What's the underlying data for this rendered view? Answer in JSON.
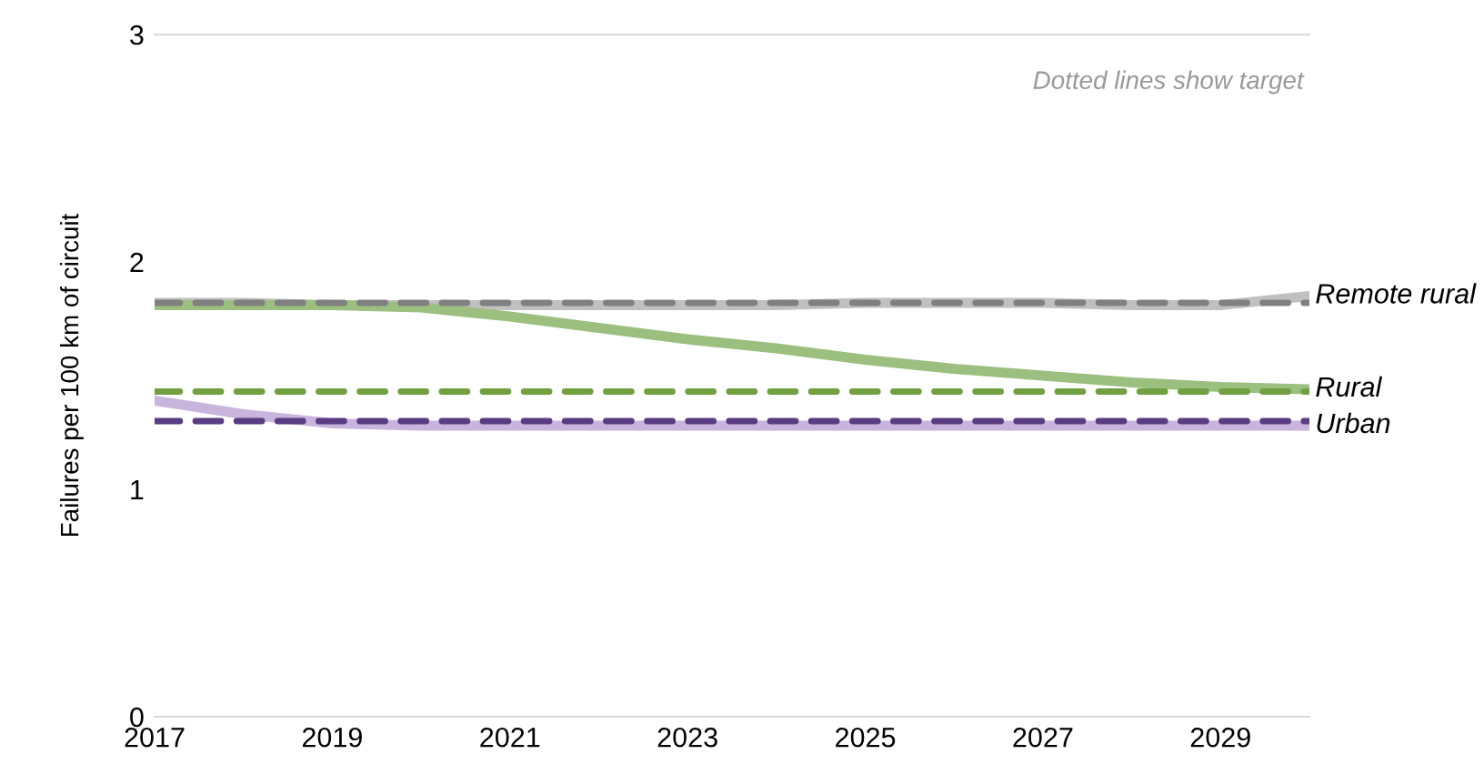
{
  "chart_data": {
    "type": "line",
    "ylabel": "Failures per 100 km of circuit",
    "x": [
      2017,
      2018,
      2019,
      2020,
      2021,
      2022,
      2023,
      2024,
      2025,
      2026,
      2027,
      2028,
      2029,
      2030
    ],
    "xlim": [
      2017,
      2030
    ],
    "xticks": [
      2017,
      2019,
      2021,
      2023,
      2025,
      2027,
      2029
    ],
    "ylim": [
      0,
      3
    ],
    "yticks": [
      0,
      1,
      2,
      3
    ],
    "grid": false,
    "legend": false,
    "series": [
      {
        "name": "Remote rural",
        "color": "#c0c0c0",
        "values": [
          1.82,
          1.82,
          1.81,
          1.81,
          1.81,
          1.81,
          1.81,
          1.81,
          1.82,
          1.82,
          1.82,
          1.81,
          1.81,
          1.85
        ]
      },
      {
        "name": "Rural",
        "color": "#9bbf7f",
        "values": [
          1.81,
          1.81,
          1.81,
          1.8,
          1.76,
          1.71,
          1.66,
          1.62,
          1.57,
          1.53,
          1.5,
          1.47,
          1.45,
          1.44
        ]
      },
      {
        "name": "Urban",
        "color": "#c8b4dc",
        "values": [
          1.39,
          1.33,
          1.29,
          1.28,
          1.28,
          1.28,
          1.28,
          1.28,
          1.28,
          1.28,
          1.28,
          1.28,
          1.28,
          1.28
        ]
      }
    ],
    "ref_lines": [
      {
        "axis": "y",
        "value": 1.82,
        "color": "#808080",
        "line_style": "dashed"
      },
      {
        "axis": "y",
        "value": 1.43,
        "color": "#70a040",
        "line_style": "dashed"
      },
      {
        "axis": "y",
        "value": 1.3,
        "color": "#5a3c82",
        "line_style": "dashed"
      }
    ],
    "annotations": [
      {
        "text": "Dotted lines show target"
      }
    ]
  }
}
